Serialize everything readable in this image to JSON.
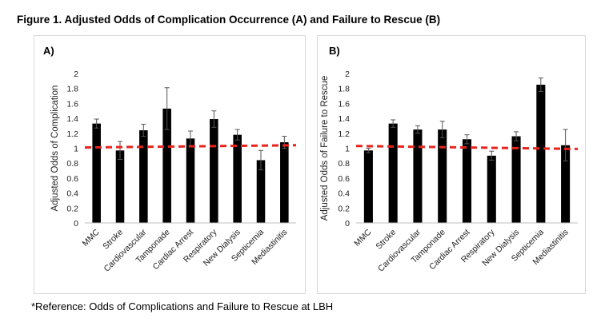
{
  "figure_title": "Figure 1. Adjusted Odds of Complication Occurrence (A) and Failure to Rescue (B)",
  "footnote": "*Reference: Odds of Complications and Failure to Rescue at LBH",
  "colors": {
    "bar": "#000000",
    "reference_line": "#e8231c",
    "frame": "#d9d9d9"
  },
  "chart_data": [
    {
      "type": "bar",
      "panel_label": "A)",
      "ylabel": "Adjusted Odds of Complication",
      "ylim": [
        0,
        2
      ],
      "yticks": [
        "0",
        "0.2",
        "0.4",
        "0.6",
        "0.8",
        "1",
        "1.2",
        "1.4",
        "1.6",
        "1.8",
        "2"
      ],
      "categories": [
        "MMC",
        "Stroke",
        "Cardiovascular",
        "Tamponade",
        "Cardiac Arrest",
        "Respiratory",
        "New Dialysis",
        "Septicemia",
        "Mediastinitis"
      ],
      "values": [
        1.33,
        0.97,
        1.24,
        1.53,
        1.13,
        1.39,
        1.18,
        0.84,
        1.08
      ],
      "error": [
        0.06,
        0.12,
        0.08,
        0.28,
        0.1,
        0.11,
        0.07,
        0.13,
        0.08
      ],
      "reference_line": {
        "start": 1.01,
        "end": 1.04,
        "style": "dashed"
      },
      "grid": false
    },
    {
      "type": "bar",
      "panel_label": "B)",
      "ylabel": "Adjusted Odds of Failure to Rescue",
      "ylim": [
        0,
        2
      ],
      "yticks": [
        "0",
        "0.2",
        "0.4",
        "0.6",
        "0.8",
        "1",
        "1.2",
        "1.4",
        "1.6",
        "1.8",
        "2"
      ],
      "categories": [
        "MMC",
        "Stroke",
        "Cardiovascular",
        "Tamponade",
        "Cardiac Arrest",
        "Respiratory",
        "New Dialysis",
        "Septicemia",
        "Mediastinitis"
      ],
      "values": [
        0.97,
        1.33,
        1.25,
        1.25,
        1.12,
        0.9,
        1.16,
        1.85,
        1.04
      ],
      "error": [
        0.03,
        0.05,
        0.05,
        0.11,
        0.06,
        0.06,
        0.06,
        0.09,
        0.21
      ],
      "reference_line": {
        "start": 1.03,
        "end": 0.99,
        "style": "dashed"
      },
      "grid": false
    }
  ]
}
